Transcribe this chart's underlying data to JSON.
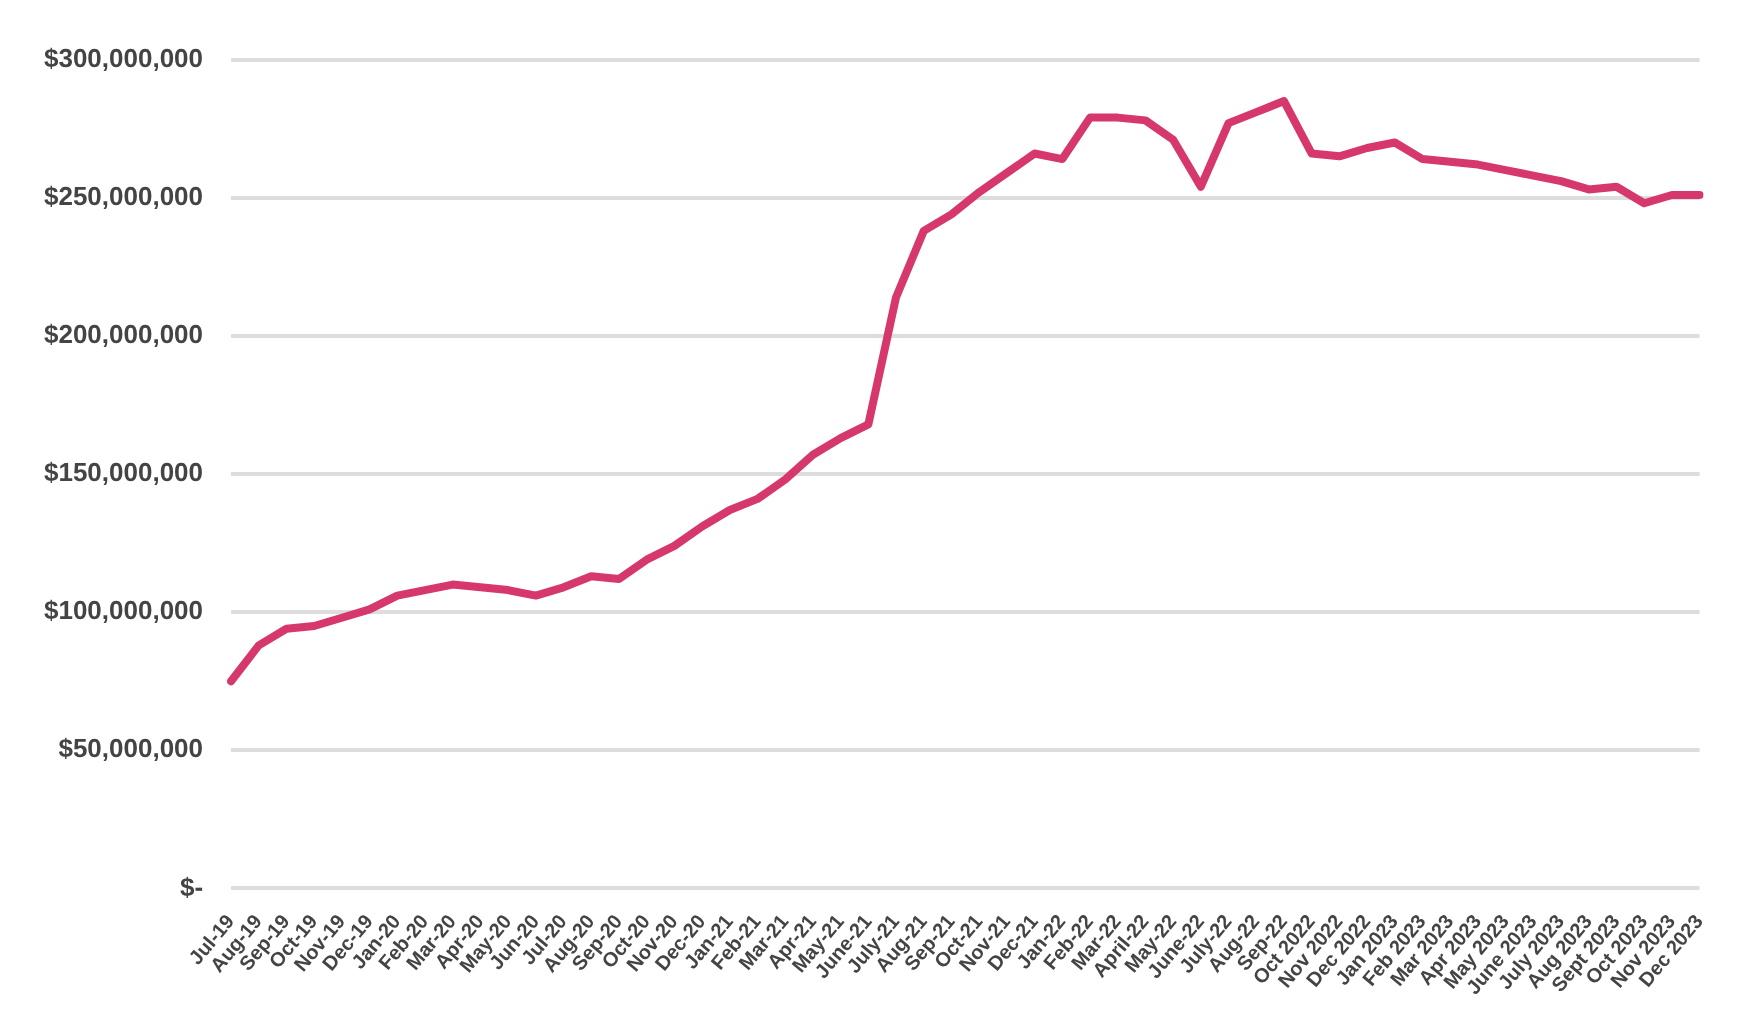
{
  "chart_data": {
    "type": "line",
    "categories": [
      "Jul-19",
      "Aug-19",
      "Sep-19",
      "Oct-19",
      "Nov-19",
      "Dec-19",
      "Jan-20",
      "Feb-20",
      "Mar-20",
      "Apr-20",
      "May-20",
      "Jun-20",
      "Jul-20",
      "Aug-20",
      "Sep-20",
      "Oct-20",
      "Nov-20",
      "Dec-20",
      "Jan-21",
      "Feb-21",
      "Mar-21",
      "Apr-21",
      "May-21",
      "June-21",
      "July-21",
      "Aug-21",
      "Sep-21",
      "Oct-21",
      "Nov-21",
      "Dec-21",
      "Jan-22",
      "Feb-22",
      "Mar-22",
      "April-22",
      "May-22",
      "June-22",
      "July-22",
      "Aug-22",
      "Sep-22",
      "Oct 2022",
      "Nov 2022",
      "Dec 2022",
      "Jan 2023",
      "Feb 2023",
      "Mar 2023",
      "Apr 2023",
      "May 2023",
      "June 2023",
      "July 2023",
      "Aug 2023",
      "Sept 2023",
      "Oct 2023",
      "Nov 2023",
      "Dec 2023"
    ],
    "series": [
      {
        "color": "#d6386c",
        "values": [
          75000000,
          88000000,
          94000000,
          95000000,
          98000000,
          101000000,
          106000000,
          108000000,
          110000000,
          109000000,
          108000000,
          106000000,
          109000000,
          113000000,
          112000000,
          119000000,
          124000000,
          131000000,
          137000000,
          141000000,
          148000000,
          157000000,
          163000000,
          168000000,
          214000000,
          238000000,
          244000000,
          252000000,
          259000000,
          266000000,
          264000000,
          279000000,
          279000000,
          278000000,
          271000000,
          254000000,
          277000000,
          281000000,
          285000000,
          266000000,
          265000000,
          268000000,
          270000000,
          264000000,
          263000000,
          262000000,
          260000000,
          258000000,
          256000000,
          253000000,
          254000000,
          248000000,
          251000000,
          251000000
        ]
      }
    ],
    "ylim": [
      0,
      300000000
    ],
    "yticks": [
      {
        "value": 0,
        "label": "$-"
      },
      {
        "value": 50000000,
        "label": "$50,000,000"
      },
      {
        "value": 100000000,
        "label": "$100,000,000"
      },
      {
        "value": 150000000,
        "label": "$150,000,000"
      },
      {
        "value": 200000000,
        "label": "$200,000,000"
      },
      {
        "value": 250000000,
        "label": "$250,000,000"
      },
      {
        "value": 300000000,
        "label": "$300,000,000"
      }
    ],
    "grid": "y",
    "legend": false,
    "marker": "none",
    "line_style": "solid"
  }
}
